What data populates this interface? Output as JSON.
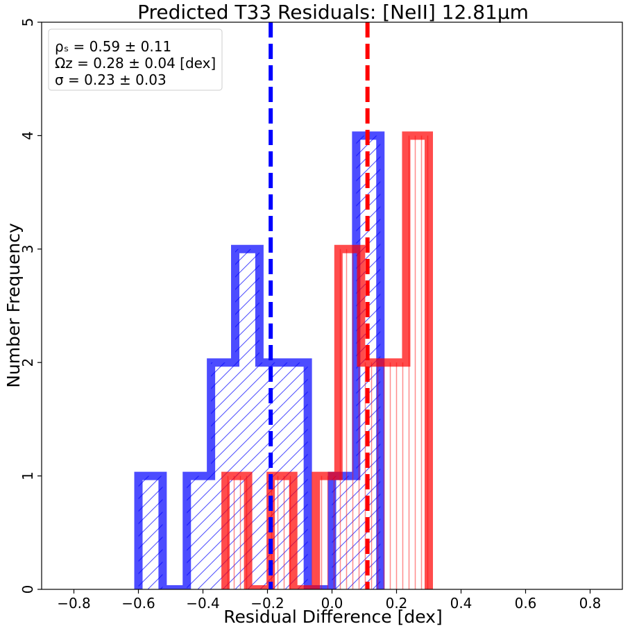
{
  "chart_data": {
    "type": "histogram",
    "title": "Predicted T33 Residuals: [NeII] 12.81μm",
    "xlabel": "Residual Difference [dex]",
    "ylabel": "Number Frequency",
    "xlim": [
      -0.9,
      0.9
    ],
    "ylim": [
      0,
      5
    ],
    "xticks": [
      -0.8,
      -0.6,
      -0.4,
      -0.2,
      0.0,
      0.2,
      0.4,
      0.6,
      0.8
    ],
    "xtick_labels": [
      "−0.8",
      "−0.6",
      "−0.4",
      "−0.2",
      "0.0",
      "0.2",
      "0.4",
      "0.6",
      "0.8"
    ],
    "yticks": [
      0,
      1,
      2,
      3,
      4,
      5
    ],
    "ytick_labels": [
      "0",
      "1",
      "2",
      "3",
      "4",
      "5"
    ],
    "grid": false,
    "legend_position": "top-left",
    "series": [
      {
        "color": "#0000ff",
        "hatch": "diagonal",
        "bin_edges": [
          -0.6,
          -0.525,
          -0.45,
          -0.375,
          -0.3,
          -0.225,
          -0.15,
          -0.075,
          0.0,
          0.075,
          0.15
        ],
        "counts": [
          1,
          0,
          1,
          2,
          3,
          2,
          2,
          0,
          1,
          4
        ],
        "median_line": -0.19
      },
      {
        "color": "#ff0000",
        "hatch": "vertical",
        "bin_edges": [
          -0.33,
          -0.26,
          -0.19,
          -0.12,
          -0.05,
          0.02,
          0.09,
          0.16,
          0.23,
          0.3
        ],
        "counts": [
          1,
          0,
          1,
          0,
          1,
          3,
          2,
          2,
          4
        ],
        "median_line": 0.11
      }
    ],
    "annotation_lines": [
      "ρₛ = 0.59 ± 0.11",
      "Ωᴢ = 0.28 ± 0.04 [dex]",
      "σ = 0.23 ± 0.03"
    ]
  }
}
